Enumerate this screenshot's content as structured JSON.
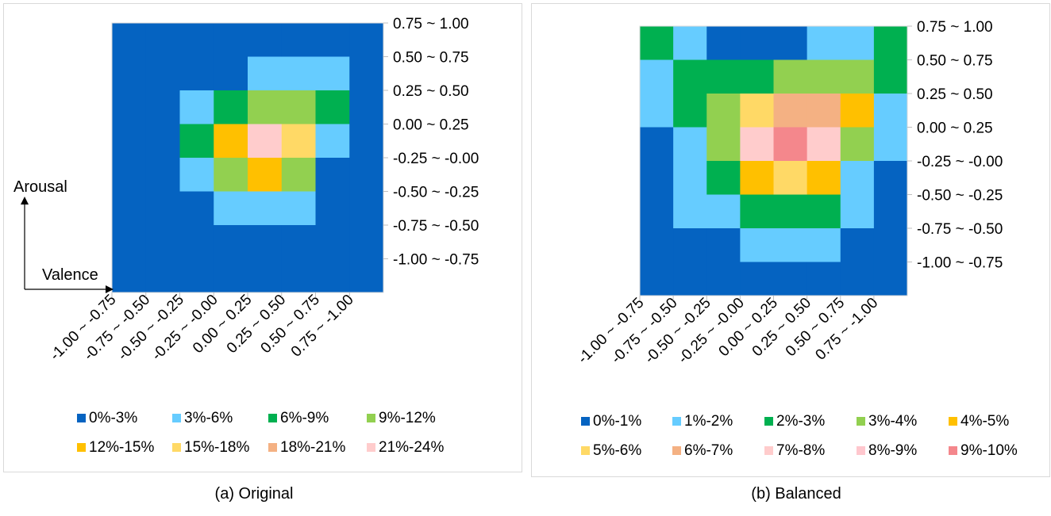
{
  "figure": {
    "captions": [
      "(a) Original",
      "(b) Balanced"
    ],
    "axis_arrows": {
      "y_label": "Arousal",
      "x_label": "Valence"
    }
  },
  "chart_data": [
    {
      "type": "heatmap",
      "x_categories": [
        "-1.00 ~ -0.75",
        "-0.75 ~ -0.50",
        "-0.50 ~ -0.25",
        "-0.25 ~ -0.00",
        "0.00 ~ 0.25",
        "0.25 ~ 0.50",
        "0.50 ~ 0.75",
        "0.75 ~ -1.00"
      ],
      "y_categories": [
        "0.75 ~ 1.00",
        "0.50 ~ 0.75",
        "0.25 ~ 0.50",
        "0.00 ~ 0.25",
        "-0.25 ~ -0.00",
        "-0.50 ~ -0.25",
        "-0.75 ~ -0.50",
        "-1.00 ~ -0.75"
      ],
      "legend": [
        "0%-3%",
        "3%-6%",
        "6%-9%",
        "9%-12%",
        "12%-15%",
        "15%-18%",
        "18%-21%",
        "21%-24%"
      ],
      "colors": [
        "#0563c1",
        "#66ccff",
        "#00b050",
        "#92d050",
        "#ffc000",
        "#ffd966",
        "#f4b183",
        "#ffcccc"
      ],
      "values": [
        [
          0,
          0,
          0,
          0,
          0,
          0,
          0,
          0
        ],
        [
          0,
          0,
          0,
          2,
          3,
          4,
          5,
          0
        ],
        [
          0,
          2,
          3,
          8,
          11,
          10,
          8,
          0
        ],
        [
          0,
          1,
          6,
          14,
          22,
          16,
          4,
          0
        ],
        [
          0,
          1,
          4,
          9,
          14,
          10,
          2,
          0
        ],
        [
          0,
          0,
          1,
          4,
          5,
          3,
          1,
          0
        ],
        [
          0,
          0,
          0,
          0,
          0,
          0,
          0,
          0
        ],
        [
          0,
          0,
          0,
          0,
          0,
          0,
          0,
          0
        ]
      ]
    },
    {
      "type": "heatmap",
      "x_categories": [
        "-1.00 ~ -0.75",
        "-0.75 ~ -0.50",
        "-0.50 ~ -0.25",
        "-0.25 ~ -0.00",
        "0.00 ~ 0.25",
        "0.25 ~ 0.50",
        "0.50 ~ 0.75",
        "0.75 ~ -1.00"
      ],
      "y_categories": [
        "0.75 ~ 1.00",
        "0.50 ~ 0.75",
        "0.25 ~ 0.50",
        "0.00 ~ 0.25",
        "-0.25 ~ -0.00",
        "-0.50 ~ -0.25",
        "-0.75 ~ -0.50",
        "-1.00 ~ -0.75"
      ],
      "legend": [
        "0%-1%",
        "1%-2%",
        "2%-3%",
        "3%-4%",
        "4%-5%",
        "5%-6%",
        "6%-7%",
        "7%-8%",
        "8%-9%",
        "9%-10%"
      ],
      "colors": [
        "#0563c1",
        "#66ccff",
        "#00b050",
        "#92d050",
        "#ffc000",
        "#ffd966",
        "#f4b183",
        "#ffcccc",
        "#ffc7ce",
        "#f4878c"
      ],
      "values": [
        [
          2.5,
          1.5,
          0.8,
          0.5,
          0.5,
          1.0,
          1.8,
          2.5
        ],
        [
          1.5,
          2.2,
          2.8,
          2.8,
          3.0,
          3.0,
          3.2,
          2.5
        ],
        [
          1.0,
          2.2,
          3.5,
          5.5,
          6.5,
          6.0,
          4.5,
          1.5
        ],
        [
          0.5,
          1.8,
          3.0,
          7.5,
          9.5,
          7.0,
          3.0,
          1.0
        ],
        [
          0.5,
          1.2,
          2.5,
          4.5,
          5.0,
          4.5,
          1.8,
          0.5
        ],
        [
          0.5,
          1.0,
          1.8,
          2.5,
          2.8,
          2.2,
          1.2,
          0.5
        ],
        [
          0.5,
          0.5,
          0.9,
          1.2,
          1.5,
          1.2,
          0.8,
          0.5
        ],
        [
          0.5,
          0.5,
          0.5,
          0.5,
          0.5,
          0.5,
          0.5,
          0.5
        ]
      ]
    }
  ]
}
